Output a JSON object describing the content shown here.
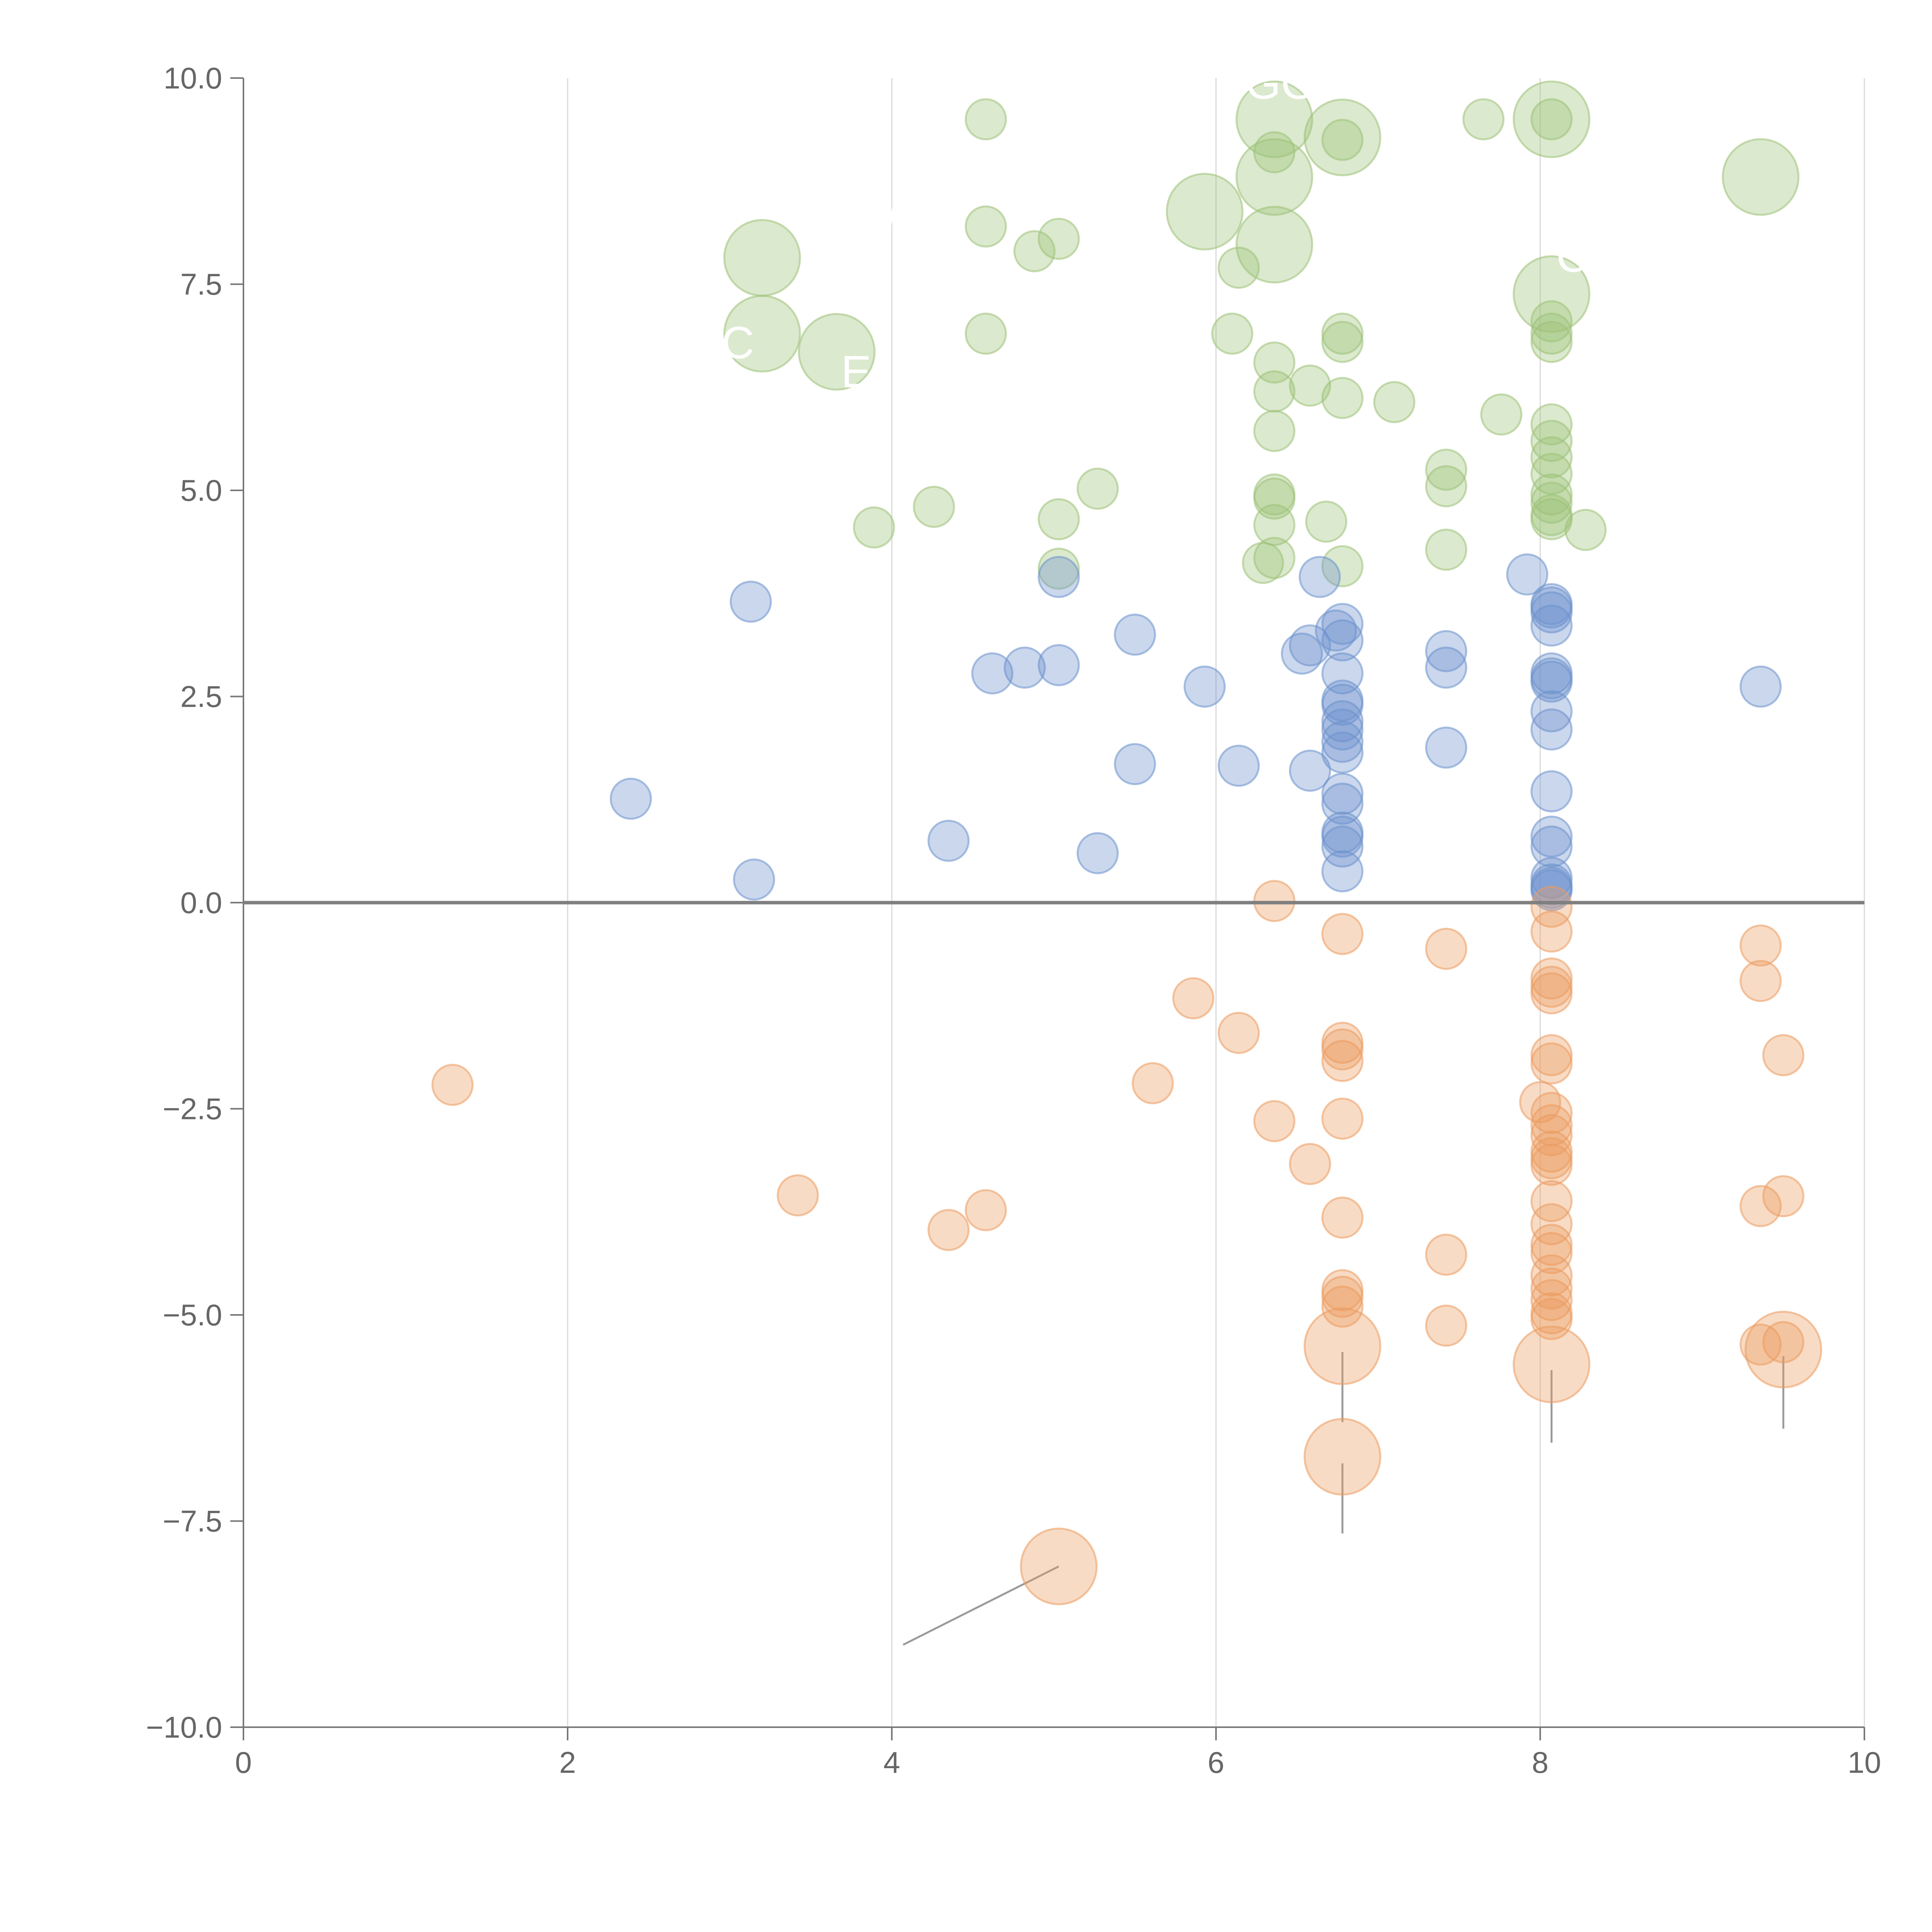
{
  "chart_data": {
    "type": "scatter",
    "title": "",
    "xlabel": "",
    "ylabel": "",
    "xlim": [
      0,
      10
    ],
    "ylim": [
      -10,
      10
    ],
    "x_ticks": [
      0,
      2,
      4,
      6,
      8,
      10
    ],
    "x_tick_labels": [
      "0",
      "2",
      "4",
      "6",
      "8",
      "10"
    ],
    "y_ticks": [
      -10,
      -7.5,
      -5,
      -2.5,
      0,
      2.5,
      5,
      7.5,
      10
    ],
    "y_tick_labels": [
      "−10.0",
      "−7.5",
      "−5.0",
      "−2.5",
      "0.0",
      "2.5",
      "5.0",
      "7.5",
      "10.0"
    ],
    "grid": "vertical",
    "reference_line_y": 0,
    "colors": {
      "green": "#9cc177",
      "blue": "#6b91cc",
      "orange": "#eb9b5e",
      "annotation_line": "#9a9a9a"
    },
    "series": [
      {
        "name": "green",
        "color": "#9cc177",
        "points": [
          {
            "x": 4.58,
            "y": 9.5,
            "s": 1
          },
          {
            "x": 6.36,
            "y": 9.1,
            "s": 1
          },
          {
            "x": 7.65,
            "y": 9.5,
            "s": 1
          },
          {
            "x": 8.07,
            "y": 9.5,
            "s": 1
          },
          {
            "x": 6.78,
            "y": 9.25,
            "s": 1
          },
          {
            "x": 4.58,
            "y": 8.2,
            "s": 1
          },
          {
            "x": 5.03,
            "y": 8.05,
            "s": 1
          },
          {
            "x": 4.88,
            "y": 7.9,
            "s": 1
          },
          {
            "x": 6.14,
            "y": 7.7,
            "s": 1
          },
          {
            "x": 4.58,
            "y": 6.9,
            "s": 1
          },
          {
            "x": 6.1,
            "y": 6.9,
            "s": 1
          },
          {
            "x": 6.78,
            "y": 6.9,
            "s": 1
          },
          {
            "x": 6.78,
            "y": 6.8,
            "s": 1
          },
          {
            "x": 8.07,
            "y": 7.05,
            "s": 1
          },
          {
            "x": 8.07,
            "y": 6.9,
            "s": 1
          },
          {
            "x": 8.07,
            "y": 6.8,
            "s": 1
          },
          {
            "x": 6.36,
            "y": 6.55,
            "s": 1
          },
          {
            "x": 6.36,
            "y": 6.2,
            "s": 1
          },
          {
            "x": 6.58,
            "y": 6.27,
            "s": 1
          },
          {
            "x": 6.78,
            "y": 6.12,
            "s": 1
          },
          {
            "x": 7.1,
            "y": 6.07,
            "s": 1
          },
          {
            "x": 7.76,
            "y": 5.92,
            "s": 1
          },
          {
            "x": 6.36,
            "y": 5.72,
            "s": 1
          },
          {
            "x": 8.07,
            "y": 5.8,
            "s": 1
          },
          {
            "x": 8.07,
            "y": 5.6,
            "s": 1
          },
          {
            "x": 8.07,
            "y": 5.4,
            "s": 1
          },
          {
            "x": 8.07,
            "y": 5.2,
            "s": 1
          },
          {
            "x": 7.42,
            "y": 5.25,
            "s": 1
          },
          {
            "x": 7.42,
            "y": 5.05,
            "s": 1
          },
          {
            "x": 5.27,
            "y": 5.02,
            "s": 1
          },
          {
            "x": 6.36,
            "y": 4.95,
            "s": 1
          },
          {
            "x": 6.36,
            "y": 4.9,
            "s": 1
          },
          {
            "x": 8.07,
            "y": 4.95,
            "s": 1
          },
          {
            "x": 8.07,
            "y": 4.85,
            "s": 1
          },
          {
            "x": 8.07,
            "y": 4.7,
            "s": 1
          },
          {
            "x": 8.07,
            "y": 4.65,
            "s": 1
          },
          {
            "x": 4.26,
            "y": 4.8,
            "s": 1
          },
          {
            "x": 5.03,
            "y": 4.65,
            "s": 1
          },
          {
            "x": 6.68,
            "y": 4.62,
            "s": 1
          },
          {
            "x": 6.36,
            "y": 4.58,
            "s": 1
          },
          {
            "x": 3.89,
            "y": 4.55,
            "s": 1
          },
          {
            "x": 8.28,
            "y": 4.52,
            "s": 1
          },
          {
            "x": 7.42,
            "y": 4.28,
            "s": 1
          },
          {
            "x": 6.36,
            "y": 4.18,
            "s": 1
          },
          {
            "x": 6.29,
            "y": 4.12,
            "s": 1
          },
          {
            "x": 6.78,
            "y": 4.08,
            "s": 1
          },
          {
            "x": 5.03,
            "y": 4.05,
            "s": 1
          },
          {
            "x": 6.36,
            "y": 9.5,
            "s": 3
          },
          {
            "x": 6.78,
            "y": 9.28,
            "s": 3
          },
          {
            "x": 8.07,
            "y": 9.5,
            "s": 3
          },
          {
            "x": 9.36,
            "y": 8.8,
            "s": 3
          },
          {
            "x": 6.36,
            "y": 8.8,
            "s": 3
          },
          {
            "x": 5.93,
            "y": 8.38,
            "s": 3
          },
          {
            "x": 3.2,
            "y": 7.82,
            "s": 3
          },
          {
            "x": 6.36,
            "y": 7.98,
            "s": 3
          },
          {
            "x": 8.07,
            "y": 7.38,
            "s": 3
          },
          {
            "x": 3.2,
            "y": 6.9,
            "s": 3
          },
          {
            "x": 3.66,
            "y": 6.68,
            "s": 3
          }
        ]
      },
      {
        "name": "blue",
        "color": "#6b91cc",
        "points": [
          {
            "x": 6.74,
            "y": 3.3,
            "s": 1
          },
          {
            "x": 3.13,
            "y": 3.65,
            "s": 1
          },
          {
            "x": 5.03,
            "y": 3.95,
            "s": 1
          },
          {
            "x": 6.64,
            "y": 3.95,
            "s": 1
          },
          {
            "x": 7.92,
            "y": 3.98,
            "s": 1
          },
          {
            "x": 8.07,
            "y": 3.62,
            "s": 1
          },
          {
            "x": 8.07,
            "y": 3.58,
            "s": 1
          },
          {
            "x": 8.07,
            "y": 3.52,
            "s": 1
          },
          {
            "x": 8.07,
            "y": 3.36,
            "s": 1
          },
          {
            "x": 6.78,
            "y": 3.38,
            "s": 1
          },
          {
            "x": 6.78,
            "y": 3.18,
            "s": 1
          },
          {
            "x": 5.5,
            "y": 3.25,
            "s": 1
          },
          {
            "x": 6.58,
            "y": 3.12,
            "s": 1
          },
          {
            "x": 6.53,
            "y": 3.02,
            "s": 1
          },
          {
            "x": 7.42,
            "y": 3.05,
            "s": 1
          },
          {
            "x": 5.03,
            "y": 2.88,
            "s": 1
          },
          {
            "x": 4.82,
            "y": 2.85,
            "s": 1
          },
          {
            "x": 7.42,
            "y": 2.85,
            "s": 1
          },
          {
            "x": 4.62,
            "y": 2.78,
            "s": 1
          },
          {
            "x": 6.78,
            "y": 2.78,
            "s": 1
          },
          {
            "x": 8.07,
            "y": 2.78,
            "s": 1
          },
          {
            "x": 8.07,
            "y": 2.72,
            "s": 1
          },
          {
            "x": 8.07,
            "y": 2.68,
            "s": 1
          },
          {
            "x": 5.93,
            "y": 2.62,
            "s": 1
          },
          {
            "x": 9.36,
            "y": 2.62,
            "s": 1
          },
          {
            "x": 6.78,
            "y": 2.45,
            "s": 1
          },
          {
            "x": 6.78,
            "y": 2.4,
            "s": 1
          },
          {
            "x": 8.07,
            "y": 2.32,
            "s": 1
          },
          {
            "x": 6.78,
            "y": 2.2,
            "s": 1
          },
          {
            "x": 6.78,
            "y": 2.1,
            "s": 1
          },
          {
            "x": 8.07,
            "y": 2.1,
            "s": 1
          },
          {
            "x": 6.78,
            "y": 1.95,
            "s": 1
          },
          {
            "x": 7.42,
            "y": 1.88,
            "s": 1
          },
          {
            "x": 6.78,
            "y": 1.82,
            "s": 1
          },
          {
            "x": 5.5,
            "y": 1.68,
            "s": 1
          },
          {
            "x": 6.14,
            "y": 1.66,
            "s": 1
          },
          {
            "x": 6.58,
            "y": 1.6,
            "s": 1
          },
          {
            "x": 8.07,
            "y": 1.35,
            "s": 1
          },
          {
            "x": 6.78,
            "y": 1.32,
            "s": 1
          },
          {
            "x": 2.39,
            "y": 1.26,
            "s": 1
          },
          {
            "x": 6.78,
            "y": 1.2,
            "s": 1
          },
          {
            "x": 6.78,
            "y": 0.85,
            "s": 1
          },
          {
            "x": 6.78,
            "y": 0.8,
            "s": 1
          },
          {
            "x": 8.07,
            "y": 0.8,
            "s": 1
          },
          {
            "x": 4.35,
            "y": 0.75,
            "s": 1
          },
          {
            "x": 6.78,
            "y": 0.68,
            "s": 1
          },
          {
            "x": 8.07,
            "y": 0.68,
            "s": 1
          },
          {
            "x": 5.27,
            "y": 0.6,
            "s": 1
          },
          {
            "x": 6.78,
            "y": 0.38,
            "s": 1
          },
          {
            "x": 8.07,
            "y": 0.3,
            "s": 1
          },
          {
            "x": 3.15,
            "y": 0.28,
            "s": 1
          },
          {
            "x": 8.07,
            "y": 0.22,
            "s": 1
          },
          {
            "x": 8.07,
            "y": 0.18,
            "s": 1
          },
          {
            "x": 8.07,
            "y": 0.15,
            "s": 1
          }
        ]
      },
      {
        "name": "orange",
        "color": "#eb9b5e",
        "points": [
          {
            "x": 6.36,
            "y": 0.02,
            "s": 1
          },
          {
            "x": 8.07,
            "y": -0.05,
            "s": 1
          },
          {
            "x": 8.07,
            "y": -0.35,
            "s": 1
          },
          {
            "x": 6.78,
            "y": -0.38,
            "s": 1
          },
          {
            "x": 9.36,
            "y": -0.52,
            "s": 1
          },
          {
            "x": 7.42,
            "y": -0.56,
            "s": 1
          },
          {
            "x": 9.36,
            "y": -0.95,
            "s": 1
          },
          {
            "x": 8.07,
            "y": -0.92,
            "s": 1
          },
          {
            "x": 8.07,
            "y": -1.02,
            "s": 1
          },
          {
            "x": 8.07,
            "y": -1.1,
            "s": 1
          },
          {
            "x": 5.86,
            "y": -1.16,
            "s": 1
          },
          {
            "x": 6.14,
            "y": -1.58,
            "s": 1
          },
          {
            "x": 6.78,
            "y": -1.7,
            "s": 1
          },
          {
            "x": 6.78,
            "y": -1.78,
            "s": 1
          },
          {
            "x": 6.78,
            "y": -1.92,
            "s": 1
          },
          {
            "x": 8.07,
            "y": -1.85,
            "s": 1
          },
          {
            "x": 8.07,
            "y": -1.95,
            "s": 1
          },
          {
            "x": 9.5,
            "y": -1.85,
            "s": 1
          },
          {
            "x": 1.29,
            "y": -2.21,
            "s": 1
          },
          {
            "x": 5.61,
            "y": -2.19,
            "s": 1
          },
          {
            "x": 8.0,
            "y": -2.42,
            "s": 1
          },
          {
            "x": 8.07,
            "y": -2.55,
            "s": 1
          },
          {
            "x": 8.07,
            "y": -2.7,
            "s": 1
          },
          {
            "x": 6.78,
            "y": -2.62,
            "s": 1
          },
          {
            "x": 6.36,
            "y": -2.65,
            "s": 1
          },
          {
            "x": 8.07,
            "y": -2.82,
            "s": 1
          },
          {
            "x": 8.07,
            "y": -3.02,
            "s": 1
          },
          {
            "x": 8.07,
            "y": -3.1,
            "s": 1
          },
          {
            "x": 8.07,
            "y": -3.18,
            "s": 1
          },
          {
            "x": 6.58,
            "y": -3.17,
            "s": 1
          },
          {
            "x": 3.42,
            "y": -3.55,
            "s": 1
          },
          {
            "x": 9.5,
            "y": -3.56,
            "s": 1
          },
          {
            "x": 8.07,
            "y": -3.62,
            "s": 1
          },
          {
            "x": 9.36,
            "y": -3.68,
            "s": 1
          },
          {
            "x": 4.58,
            "y": -3.73,
            "s": 1
          },
          {
            "x": 6.78,
            "y": -3.82,
            "s": 1
          },
          {
            "x": 8.07,
            "y": -3.9,
            "s": 1
          },
          {
            "x": 4.35,
            "y": -3.97,
            "s": 1
          },
          {
            "x": 8.07,
            "y": -4.15,
            "s": 1
          },
          {
            "x": 7.42,
            "y": -4.27,
            "s": 1
          },
          {
            "x": 8.07,
            "y": -4.25,
            "s": 1
          },
          {
            "x": 8.07,
            "y": -4.52,
            "s": 1
          },
          {
            "x": 8.07,
            "y": -4.68,
            "s": 1
          },
          {
            "x": 6.78,
            "y": -4.7,
            "s": 1
          },
          {
            "x": 6.78,
            "y": -4.78,
            "s": 1
          },
          {
            "x": 8.07,
            "y": -4.82,
            "s": 1
          },
          {
            "x": 6.78,
            "y": -4.9,
            "s": 1
          },
          {
            "x": 8.07,
            "y": -4.98,
            "s": 1
          },
          {
            "x": 8.07,
            "y": -5.05,
            "s": 1
          },
          {
            "x": 7.42,
            "y": -5.13,
            "s": 1
          },
          {
            "x": 9.36,
            "y": -5.36,
            "s": 1
          },
          {
            "x": 9.5,
            "y": -5.33,
            "s": 1
          },
          {
            "x": 6.78,
            "y": -5.38,
            "s": 3
          },
          {
            "x": 9.5,
            "y": -5.42,
            "s": 3
          },
          {
            "x": 8.07,
            "y": -5.6,
            "s": 3
          },
          {
            "x": 6.78,
            "y": -6.72,
            "s": 3
          },
          {
            "x": 5.03,
            "y": -8.05,
            "s": 3
          }
        ]
      }
    ],
    "annotations": [
      {
        "text": "GG",
        "x": 6.4,
        "y": 9.75
      },
      {
        "text": "W",
        "x": 4.03,
        "y": 8.15
      },
      {
        "text": "C",
        "x": 3.05,
        "y": 6.6
      },
      {
        "text": "E",
        "x": 3.78,
        "y": 6.25
      },
      {
        "text": "C",
        "x": 8.2,
        "y": 7.65
      }
    ],
    "leader_lines": [
      {
        "x1": 5.03,
        "y1": -8.05,
        "x2": 4.07,
        "y2": -9.0,
        "style": "gray"
      },
      {
        "x1": 6.78,
        "y1": -5.45,
        "x2": 6.78,
        "y2": -6.3,
        "style": "gray"
      },
      {
        "x1": 6.78,
        "y1": -6.8,
        "x2": 6.78,
        "y2": -7.65,
        "style": "gray"
      },
      {
        "x1": 8.07,
        "y1": -5.67,
        "x2": 8.07,
        "y2": -6.55,
        "style": "gray"
      },
      {
        "x1": 9.5,
        "y1": -5.5,
        "x2": 9.5,
        "y2": -6.38,
        "style": "gray"
      },
      {
        "x1": 3.2,
        "y1": 7.6,
        "x2": 3.05,
        "y2": 7.85,
        "style": "light"
      },
      {
        "x1": 3.2,
        "y1": 6.88,
        "x2": 3.05,
        "y2": 6.75,
        "style": "light"
      },
      {
        "x1": 3.66,
        "y1": 6.62,
        "x2": 3.78,
        "y2": 6.5,
        "style": "light"
      },
      {
        "x1": 5.93,
        "y1": 8.38,
        "x2": 5.7,
        "y2": 8.4,
        "style": "light"
      },
      {
        "x1": 6.36,
        "y1": 8.8,
        "x2": 6.2,
        "y2": 8.82,
        "style": "light"
      },
      {
        "x1": 6.36,
        "y1": 7.98,
        "x2": 6.55,
        "y2": 7.94,
        "style": "light"
      },
      {
        "x1": 6.78,
        "y1": 9.28,
        "x2": 6.98,
        "y2": 9.38,
        "style": "light"
      },
      {
        "x1": 8.07,
        "y1": 9.5,
        "x2": 8.3,
        "y2": 9.52,
        "style": "light"
      },
      {
        "x1": 9.36,
        "y1": 8.8,
        "x2": 9.38,
        "y2": 8.45,
        "style": "light"
      },
      {
        "x1": 8.07,
        "y1": 7.38,
        "x2": 8.18,
        "y2": 7.5,
        "style": "light"
      }
    ]
  }
}
